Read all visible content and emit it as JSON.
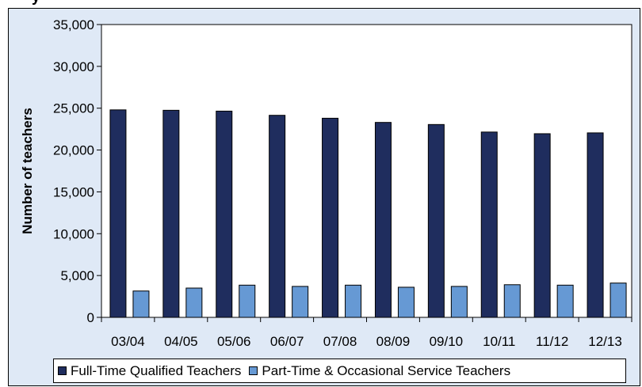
{
  "header": {
    "title_fragment": "y"
  },
  "colors": {
    "full_time": "#1f2d5e",
    "part_time": "#6699d4",
    "plot_bg": "#ffffff",
    "chart_bg": "#dfe9f6"
  },
  "legend": {
    "items": [
      {
        "label": "Full-Time Qualified Teachers",
        "color": "#1f2d5e"
      },
      {
        "label": "Part-Time & Occasional Service Teachers",
        "color": "#6699d4"
      }
    ]
  },
  "chart_data": {
    "type": "bar",
    "ylabel": "Number of teachers",
    "ylim": [
      0,
      35000
    ],
    "yticks": [
      0,
      5000,
      10000,
      15000,
      20000,
      25000,
      30000,
      35000
    ],
    "ytick_labels": [
      "0",
      "5,000",
      "10,000",
      "15,000",
      "20,000",
      "25,000",
      "30,000",
      "35,000"
    ],
    "grid": false,
    "legend_position": "bottom",
    "categories": [
      "03/04",
      "04/05",
      "05/06",
      "06/07",
      "07/08",
      "08/09",
      "09/10",
      "10/11",
      "11/12",
      "12/13"
    ],
    "series": [
      {
        "name": "Full-Time Qualified Teachers",
        "values": [
          24800,
          24750,
          24650,
          24150,
          23800,
          23300,
          23050,
          22150,
          21950,
          22050
        ]
      },
      {
        "name": "Part-Time & Occasional Service Teachers",
        "values": [
          3150,
          3500,
          3850,
          3700,
          3850,
          3600,
          3700,
          3900,
          3850,
          4100
        ]
      }
    ]
  }
}
